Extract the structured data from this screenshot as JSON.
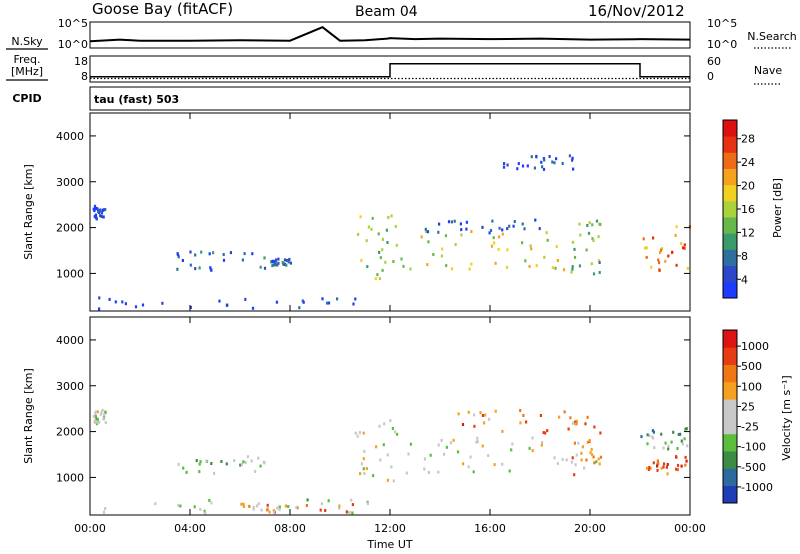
{
  "header": {
    "station": "Goose Bay (fitACF)",
    "beam": "Beam 04",
    "date": "16/Nov/2012"
  },
  "chart_data": [
    {
      "type": "line",
      "panel": "N.Sky / N.Search",
      "left_label": "N.Sky",
      "right_label": "N.Search",
      "left_ticks": [
        "10^5",
        "10^0"
      ],
      "right_ticks": [
        "10^5",
        "10^0"
      ],
      "left_scale": "log",
      "x_range_hours": [
        0,
        24
      ],
      "series": [
        {
          "name": "N.Sky",
          "x": [
            0,
            1.2,
            2,
            4,
            6,
            8,
            9.3,
            10,
            11,
            11.9,
            12,
            13,
            14,
            16,
            18,
            20,
            22,
            24
          ],
          "values": [
            1.3,
            1.6,
            1.4,
            1.4,
            1.5,
            1.4,
            4.0,
            1.4,
            1.5,
            1.8,
            1.9,
            1.7,
            1.8,
            1.7,
            1.8,
            1.6,
            1.7,
            1.6
          ],
          "y_unit": "log10"
        }
      ]
    },
    {
      "type": "line",
      "panel": "Freq / Nave",
      "left_label": "Freq.",
      "left_unit": "[MHz]",
      "right_label": "Nave",
      "left_ticks": [
        "18",
        "8"
      ],
      "right_ticks": [
        "60",
        "0"
      ],
      "x_range_hours": [
        0,
        24
      ],
      "series": [
        {
          "name": "Freq.",
          "x": [
            0,
            12,
            12,
            22,
            22,
            24
          ],
          "values": [
            10,
            10,
            15,
            15,
            10,
            10
          ]
        },
        {
          "name": "Nave",
          "x": [
            0,
            24
          ],
          "values": [
            8,
            8
          ]
        }
      ]
    },
    {
      "type": "text",
      "panel": "CPID",
      "left_label": "CPID",
      "value": "tau (fast) 503"
    },
    {
      "type": "heatmap",
      "panel": "Power",
      "ylabel": "Slant Range [km]",
      "yticks": [
        1000,
        2000,
        3000,
        4000
      ],
      "ylim": [
        180,
        4500
      ],
      "xlim_hours": [
        0,
        24
      ],
      "colorbar": {
        "label": "Power [dB]",
        "ticks": [
          "28",
          "24",
          "20",
          "16",
          "12",
          "8",
          "4"
        ],
        "colors": [
          "#1e3cff",
          "#2c47c8",
          "#2f6f9f",
          "#3a9a6a",
          "#66b84a",
          "#a9d23c",
          "#f0d020",
          "#f5a31e",
          "#f06b18",
          "#e63212",
          "#dd1010"
        ]
      },
      "regions": [
        {
          "x": [
            0.1,
            0.7
          ],
          "y": [
            2200,
            2500
          ],
          "level": 0.1
        },
        {
          "x": [
            0.0,
            11.3
          ],
          "y": [
            250,
            500
          ],
          "level": 0.05
        },
        {
          "x": [
            3.3,
            7.0
          ],
          "y": [
            1100,
            1500
          ],
          "level": 0.15
        },
        {
          "x": [
            7.2,
            8.0
          ],
          "y": [
            1200,
            1350
          ],
          "level": 0.15
        },
        {
          "x": [
            10.5,
            12.3
          ],
          "y": [
            900,
            2300
          ],
          "level": 0.45
        },
        {
          "x": [
            12.3,
            19.2
          ],
          "y": [
            1100,
            1950
          ],
          "level": 0.55
        },
        {
          "x": [
            13,
            19
          ],
          "y": [
            1900,
            2200
          ],
          "level": 0.1
        },
        {
          "x": [
            19.2,
            20.4
          ],
          "y": [
            1000,
            2300
          ],
          "level": 0.4
        },
        {
          "x": [
            22.0,
            24.0
          ],
          "y": [
            1050,
            2100
          ],
          "level": 0.75
        },
        {
          "x": [
            16.5,
            19.5
          ],
          "y": [
            3300,
            3600
          ],
          "level": 0.12
        }
      ]
    },
    {
      "type": "heatmap",
      "panel": "Velocity",
      "ylabel": "Slant Range [km]",
      "yticks": [
        1000,
        2000,
        3000,
        4000
      ],
      "ylim": [
        180,
        4500
      ],
      "xlim_hours": [
        0,
        24
      ],
      "xticks": [
        "00:00",
        "04:00",
        "08:00",
        "12:00",
        "16:00",
        "20:00",
        "00:00"
      ],
      "xlabel": "Time UT",
      "colorbar": {
        "label": "Velocity [m s⁻¹]",
        "ticks": [
          "1000",
          "500",
          "100",
          "25",
          "-25",
          "-100",
          "-500",
          "-1000"
        ],
        "colors": [
          "#1e3cb4",
          "#2d6aa0",
          "#3c8c46",
          "#5abe3c",
          "#c8c8c8",
          "#c8c8c8",
          "#f5a01e",
          "#f07814",
          "#e63c14",
          "#dc1414"
        ]
      },
      "regions": [
        {
          "x": [
            0.1,
            0.6
          ],
          "y": [
            2200,
            2500
          ],
          "level": 0.45
        },
        {
          "x": [
            0.0,
            11.3
          ],
          "y": [
            250,
            550
          ],
          "level": 0.45
        },
        {
          "x": [
            3.3,
            7.0
          ],
          "y": [
            1100,
            1500
          ],
          "level": 0.4
        },
        {
          "x": [
            10.5,
            12.3
          ],
          "y": [
            900,
            2300
          ],
          "level": 0.5
        },
        {
          "x": [
            12.3,
            20.4
          ],
          "y": [
            1100,
            1900
          ],
          "level": 0.5
        },
        {
          "x": [
            19.2,
            20.4
          ],
          "y": [
            1000,
            2400
          ],
          "level": 0.75
        },
        {
          "x": [
            22.0,
            24.0
          ],
          "y": [
            1600,
            2100
          ],
          "level": 0.28
        },
        {
          "x": [
            22.0,
            24.0
          ],
          "y": [
            1100,
            1500
          ],
          "level": 0.8
        },
        {
          "x": [
            14.5,
            19.5
          ],
          "y": [
            2000,
            2500
          ],
          "level": 0.75
        },
        {
          "x": [
            6.0,
            10.5
          ],
          "y": [
            250,
            450
          ],
          "level": 0.72
        }
      ]
    }
  ]
}
